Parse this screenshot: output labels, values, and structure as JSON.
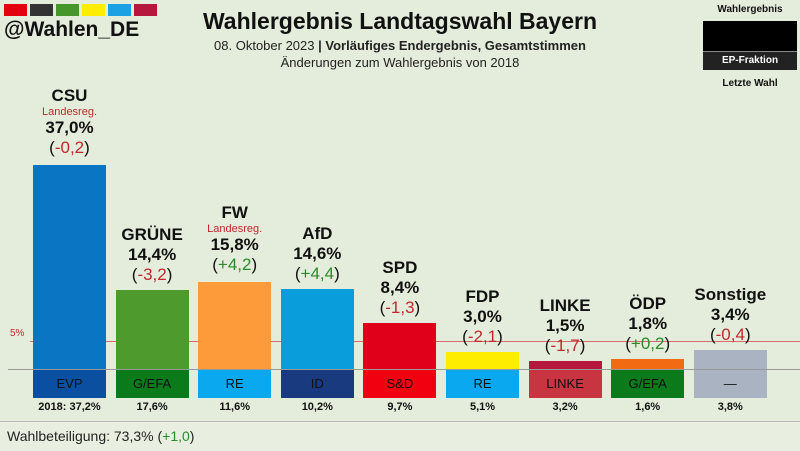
{
  "header": {
    "handle": "@Wahlen_DE",
    "title": "Wahlergebnis Landtagswahl Bayern",
    "date": "08. Oktober 2023",
    "separator": "|",
    "subtitle_bold": "Vorläufiges Endergebnis, Gesamtstimmen",
    "subtitle2": "Änderungen zum Wahlergebnis von 2018",
    "logo_colors": [
      "#e3000f",
      "#333333",
      "#46962b",
      "#ffed00",
      "#1aa1e3",
      "#b5173d"
    ]
  },
  "legend": {
    "top": "Wahlergebnis",
    "middle": "EP-Fraktion",
    "bottom": "Letzte Wahl"
  },
  "footer": {
    "label": "Wahlbeteiligung: 73,3% (",
    "change": "+1,0",
    "close": ")"
  },
  "chart_data": {
    "type": "bar",
    "title": "Wahlergebnis Landtagswahl Bayern",
    "threshold": 5,
    "threshold_label": "5%",
    "ylim": [
      0,
      37.5
    ],
    "prev_prefix": "2018: ",
    "categories": [
      "CSU",
      "GRÜNE",
      "FW",
      "AfD",
      "SPD",
      "FDP",
      "LINKE",
      "ÖDP",
      "Sonstige"
    ],
    "values": [
      37.0,
      14.4,
      15.8,
      14.6,
      8.4,
      3.0,
      1.5,
      1.8,
      3.4
    ],
    "value_labels": [
      "37,0%",
      "14,4%",
      "15,8%",
      "14,6%",
      "8,4%",
      "3,0%",
      "1,5%",
      "1,8%",
      "3,4%"
    ],
    "changes": [
      "-0,2",
      "-3,2",
      "+4,2",
      "+4,4",
      "-1,3",
      "-2,1",
      "-1,7",
      "+0,2",
      "-0,4"
    ],
    "notes": [
      "Landesreg.",
      "",
      "Landesreg.",
      "",
      "",
      "",
      "",
      "",
      ""
    ],
    "ep_groups": [
      "EVP",
      "G/EFA",
      "RE",
      "ID",
      "S&D",
      "RE",
      "LINKE",
      "G/EFA",
      "—"
    ],
    "previous": [
      "37,2%",
      "17,6%",
      "11,6%",
      "10,2%",
      "9,7%",
      "5,1%",
      "3,2%",
      "1,6%",
      "3,8%"
    ],
    "colors": [
      "#0a75c2",
      "#4f9a2d",
      "#fd9a3a",
      "#0a9ddb",
      "#e0001a",
      "#ffed00",
      "#b5173d",
      "#f26b13",
      "#a9b3c2"
    ],
    "ep_colors": [
      "#0a4fa0",
      "#0a7a1a",
      "#0aa8ee",
      "#1a3a80",
      "#f1000f",
      "#0aa8ee",
      "#c8343f",
      "#0a7a1a",
      "#a9b3c2"
    ]
  }
}
